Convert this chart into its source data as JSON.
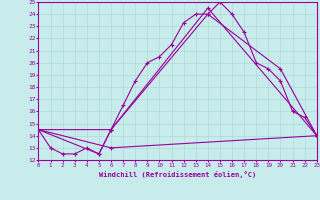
{
  "xlabel": "Windchill (Refroidissement éolien,°C)",
  "background_color": "#c8ecec",
  "line_color": "#990099",
  "grid_color": "#b0d8d8",
  "xlim": [
    0,
    23
  ],
  "ylim": [
    12,
    25
  ],
  "yticks": [
    12,
    13,
    14,
    15,
    16,
    17,
    18,
    19,
    20,
    21,
    22,
    23,
    24,
    25
  ],
  "xticks": [
    0,
    1,
    2,
    3,
    4,
    5,
    6,
    7,
    8,
    9,
    10,
    11,
    12,
    13,
    14,
    15,
    16,
    17,
    18,
    19,
    20,
    21,
    22,
    23
  ],
  "marker": "+",
  "line1_x": [
    0,
    1,
    2,
    3,
    4,
    5,
    6,
    7,
    8,
    9,
    10,
    11,
    12,
    13,
    14,
    15,
    16,
    17,
    18,
    19,
    20,
    21,
    22,
    23
  ],
  "line1_y": [
    14.5,
    13.0,
    12.5,
    12.5,
    13.0,
    12.5,
    14.5,
    16.5,
    18.5,
    20.0,
    20.5,
    21.5,
    23.3,
    24.0,
    24.0,
    25.0,
    24.0,
    22.5,
    20.0,
    19.5,
    18.5,
    16.0,
    15.5,
    14.0
  ],
  "line2_x": [
    0,
    5,
    6,
    14,
    23
  ],
  "line2_y": [
    14.5,
    12.5,
    14.5,
    24.5,
    14.0
  ],
  "line3_x": [
    0,
    6,
    14,
    20,
    23
  ],
  "line3_y": [
    14.5,
    14.5,
    24.0,
    19.5,
    14.0
  ],
  "line4_x": [
    0,
    6,
    23
  ],
  "line4_y": [
    14.5,
    13.0,
    14.0
  ]
}
